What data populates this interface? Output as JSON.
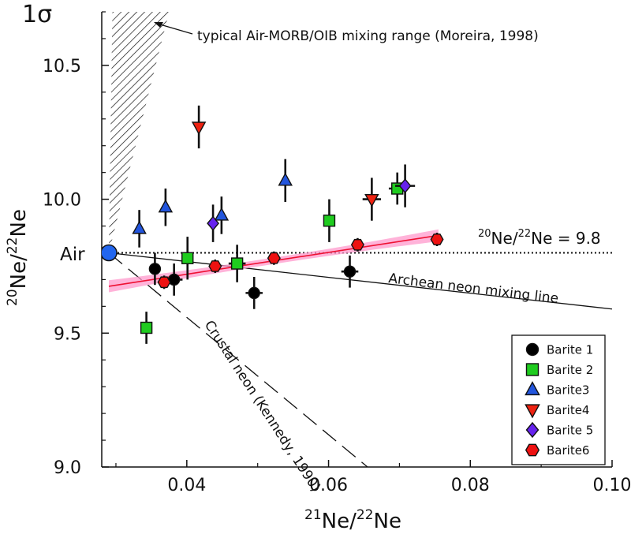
{
  "chart_data": {
    "type": "scatter",
    "corner_label": "1σ",
    "xlabel": {
      "sup": "21",
      "base": "Ne/",
      "sup2": "22",
      "base2": "Ne"
    },
    "ylabel": {
      "sup": "20",
      "base": "Ne/",
      "sup2": "22",
      "base2": "Ne"
    },
    "xlim": [
      0.028,
      0.1
    ],
    "ylim": [
      9.0,
      10.7
    ],
    "x_ticks": [
      {
        "value": 0.04,
        "label": "0.04"
      },
      {
        "value": 0.06,
        "label": "0.06"
      },
      {
        "value": 0.08,
        "label": "0.08"
      },
      {
        "value": 0.1,
        "label": "0.10"
      }
    ],
    "y_ticks": [
      {
        "value": 9.0,
        "label": "9.0"
      },
      {
        "value": 9.5,
        "label": "9.5"
      },
      {
        "value": 10.0,
        "label": "10.0"
      },
      {
        "value": 10.5,
        "label": "10.5"
      }
    ],
    "air_point": {
      "x": 0.029,
      "y": 9.8,
      "label": "Air"
    },
    "reference_lines": {
      "ne_ratio": {
        "y": 9.8,
        "label_sup": "20",
        "label_base": "Ne/",
        "label_sup2": "22",
        "label_rest": "Ne = 9.8"
      },
      "archean": {
        "x1": 0.029,
        "y1": 9.8,
        "x2": 0.1,
        "y2": 9.59,
        "label": "Archean neon mixing line"
      },
      "crustal": {
        "x1": 0.029,
        "y1": 9.8,
        "x2": 0.0655,
        "y2": 9.0,
        "label": "Crustal neon (Kennedy, 1990)"
      },
      "fit": {
        "x1": 0.029,
        "y1": 9.675,
        "x2": 0.0755,
        "y2": 9.865
      }
    },
    "mixing_range": {
      "label": "typical Air-MORB/OIB mixing range (Moreira, 1998)",
      "vertex": [
        0.029,
        9.8
      ],
      "top_left": [
        0.0295,
        10.7
      ],
      "top_right": [
        0.0375,
        10.7
      ]
    },
    "series": [
      {
        "name": "Barite 1",
        "color": "#000000",
        "marker": "circle",
        "points": [
          {
            "x": 0.0355,
            "y": 9.74,
            "xerr": 0.0005,
            "yerr": 0.06
          },
          {
            "x": 0.0382,
            "y": 9.7,
            "xerr": 0.0012,
            "yerr": 0.06
          },
          {
            "x": 0.0495,
            "y": 9.65,
            "xerr": 0.0012,
            "yerr": 0.06
          },
          {
            "x": 0.063,
            "y": 9.73,
            "xerr": 0.0012,
            "yerr": 0.06
          }
        ]
      },
      {
        "name": "Barite 2",
        "color": "#1fcc1f",
        "marker": "square",
        "points": [
          {
            "x": 0.0343,
            "y": 9.52,
            "xerr": 0.0004,
            "yerr": 0.06
          },
          {
            "x": 0.0401,
            "y": 9.78,
            "xerr": 0.0004,
            "yerr": 0.08
          },
          {
            "x": 0.0471,
            "y": 9.76,
            "xerr": 0.0012,
            "yerr": 0.07
          },
          {
            "x": 0.0601,
            "y": 9.92,
            "xerr": 0.0004,
            "yerr": 0.08
          },
          {
            "x": 0.0697,
            "y": 10.04,
            "xerr": 0.0012,
            "yerr": 0.06
          }
        ]
      },
      {
        "name": "Barite3",
        "color": "#2255dd",
        "marker": "triangle-up",
        "points": [
          {
            "x": 0.0333,
            "y": 9.89,
            "xerr": 0.0004,
            "yerr": 0.07
          },
          {
            "x": 0.037,
            "y": 9.97,
            "xerr": 0.0004,
            "yerr": 0.07
          },
          {
            "x": 0.0449,
            "y": 9.94,
            "xerr": 0.0004,
            "yerr": 0.07
          },
          {
            "x": 0.0539,
            "y": 10.07,
            "xerr": 0.0004,
            "yerr": 0.08
          }
        ]
      },
      {
        "name": "Barite4",
        "color": "#ee2211",
        "marker": "triangle-down",
        "points": [
          {
            "x": 0.0417,
            "y": 10.27,
            "xerr": 0.0004,
            "yerr": 0.08
          },
          {
            "x": 0.0661,
            "y": 10.0,
            "xerr": 0.0013,
            "yerr": 0.08
          }
        ]
      },
      {
        "name": "Barite 5",
        "color": "#6622ee",
        "marker": "diamond",
        "points": [
          {
            "x": 0.0437,
            "y": 9.91,
            "xerr": 0.0004,
            "yerr": 0.07
          },
          {
            "x": 0.0708,
            "y": 10.05,
            "xerr": 0.0014,
            "yerr": 0.08
          }
        ]
      },
      {
        "name": "Barite6",
        "color": "#ee1111",
        "marker": "hexagon",
        "points": [
          {
            "x": 0.0368,
            "y": 9.69,
            "xerr": 0.0005,
            "yerr": 0.025
          },
          {
            "x": 0.044,
            "y": 9.75,
            "xerr": 0.0008,
            "yerr": 0.025
          },
          {
            "x": 0.0523,
            "y": 9.78,
            "xerr": 0.0008,
            "yerr": 0.025
          },
          {
            "x": 0.0641,
            "y": 9.83,
            "xerr": 0.0008,
            "yerr": 0.025
          },
          {
            "x": 0.0753,
            "y": 9.85,
            "xerr": 0.0008,
            "yerr": 0.025
          }
        ]
      }
    ],
    "legend_position": "bottom-right",
    "colors": {
      "air": "#2266ee",
      "fit_line": "#ee1133",
      "fit_band": "#ff99cc"
    }
  }
}
